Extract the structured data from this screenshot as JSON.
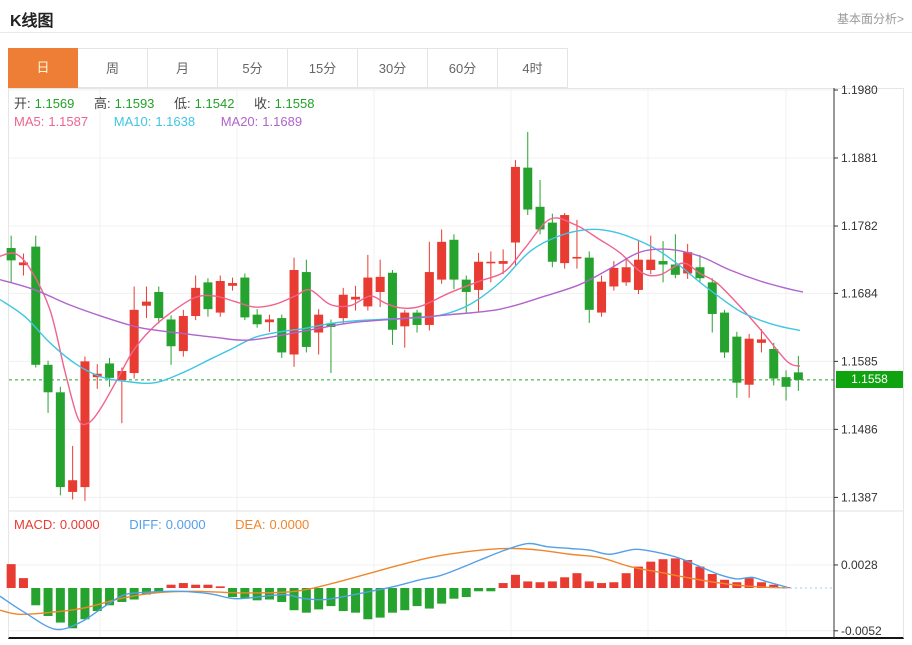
{
  "header": {
    "title": "K线图",
    "link": "基本面分析>"
  },
  "tabs": {
    "items": [
      "日",
      "周",
      "月",
      "5分",
      "15分",
      "30分",
      "60分",
      "4时"
    ],
    "active_index": 0
  },
  "ohlc": {
    "open_label": "开:",
    "open": "1.1569",
    "high_label": "高:",
    "high": "1.1593",
    "low_label": "低:",
    "low": "1.1542",
    "close_label": "收:",
    "close": "1.1558"
  },
  "ma_legend": {
    "ma5_label": "MA5:",
    "ma5": "1.1587",
    "ma10_label": "MA10:",
    "ma10": "1.1638",
    "ma20_label": "MA20:",
    "ma20": "1.1689"
  },
  "macd_legend": {
    "macd_label": "MACD:",
    "macd": "0.0000",
    "diff_label": "DIFF:",
    "diff": "0.0000",
    "dea_label": "DEA:",
    "dea": "0.0000"
  },
  "price_badge": "1.1558",
  "colors": {
    "up": "#e83b32",
    "down": "#26a32f",
    "badge_bg": "#10a310",
    "dotted_price": "#22a326",
    "ma5": "#f0638e",
    "ma10": "#3fc6e3",
    "ma20": "#b064cc",
    "diff": "#53a0e8",
    "dea": "#f0862b",
    "macd_dotted": "#8fd0e8",
    "ohlc_value": "#23a127",
    "label_text": "#444",
    "grid": "#f0f0f0",
    "axis": "#333",
    "tab_active_bg": "#ee7e35",
    "tab_active_text": "#fdf6d8"
  },
  "chart_data": {
    "type": "candlestick+macd",
    "title": "K线图",
    "legend": [
      "MA5",
      "MA10",
      "MA20",
      "MACD",
      "DIFF",
      "DEA"
    ],
    "price_axis_ticks": [
      1.198,
      1.1881,
      1.1782,
      1.1684,
      1.1585,
      1.1486,
      1.1387
    ],
    "price_range": [
      1.1387,
      1.198
    ],
    "current_price": 1.1558,
    "macd_axis_ticks": [
      0.0028,
      -0.0052
    ],
    "x_gridlines": [
      100,
      237,
      374,
      511,
      648,
      786
    ],
    "candles": [
      [
        1.175,
        1.1768,
        1.17,
        1.1732
      ],
      [
        1.1725,
        1.1742,
        1.171,
        1.1729
      ],
      [
        1.1752,
        1.1768,
        1.1576,
        1.158
      ],
      [
        1.158,
        1.1586,
        1.151,
        1.154
      ],
      [
        1.154,
        1.1548,
        1.139,
        1.1402
      ],
      [
        1.1395,
        1.1462,
        1.1384,
        1.1412
      ],
      [
        1.1402,
        1.1592,
        1.1382,
        1.1585
      ],
      [
        1.1562,
        1.1581,
        1.1545,
        1.1567
      ],
      [
        1.1582,
        1.159,
        1.1548,
        1.1561
      ],
      [
        1.1558,
        1.1576,
        1.1495,
        1.1571
      ],
      [
        1.1568,
        1.1694,
        1.156,
        1.166
      ],
      [
        1.1666,
        1.1694,
        1.1648,
        1.1672
      ],
      [
        1.1686,
        1.1694,
        1.164,
        1.1648
      ],
      [
        1.1646,
        1.1652,
        1.158,
        1.1607
      ],
      [
        1.16,
        1.166,
        1.1592,
        1.1651
      ],
      [
        1.1651,
        1.171,
        1.1645,
        1.1692
      ],
      [
        1.17,
        1.1706,
        1.165,
        1.1661
      ],
      [
        1.1656,
        1.171,
        1.165,
        1.1702
      ],
      [
        1.1695,
        1.1707,
        1.1688,
        1.1699
      ],
      [
        1.1707,
        1.1713,
        1.1645,
        1.1649
      ],
      [
        1.1653,
        1.1661,
        1.1634,
        1.1639
      ],
      [
        1.1642,
        1.1653,
        1.1628,
        1.1646
      ],
      [
        1.1648,
        1.1653,
        1.159,
        1.1598
      ],
      [
        1.1595,
        1.1736,
        1.1577,
        1.1718
      ],
      [
        1.1715,
        1.1733,
        1.1598,
        1.1606
      ],
      [
        1.1627,
        1.1661,
        1.1595,
        1.1653
      ],
      [
        1.164,
        1.1646,
        1.1568,
        1.1635
      ],
      [
        1.1648,
        1.1692,
        1.164,
        1.1682
      ],
      [
        1.1675,
        1.1695,
        1.1659,
        1.1679
      ],
      [
        1.1665,
        1.174,
        1.1659,
        1.1707
      ],
      [
        1.1686,
        1.1733,
        1.1664,
        1.1708
      ],
      [
        1.1714,
        1.1718,
        1.1609,
        1.1631
      ],
      [
        1.1636,
        1.166,
        1.1605,
        1.1656
      ],
      [
        1.1656,
        1.166,
        1.1627,
        1.1638
      ],
      [
        1.1638,
        1.1759,
        1.163,
        1.1715
      ],
      [
        1.1704,
        1.1777,
        1.1698,
        1.1759
      ],
      [
        1.1762,
        1.177,
        1.169,
        1.1704
      ],
      [
        1.1704,
        1.171,
        1.1656,
        1.1686
      ],
      [
        1.1689,
        1.1743,
        1.1657,
        1.173
      ],
      [
        1.1728,
        1.1745,
        1.17,
        1.173
      ],
      [
        1.1727,
        1.1748,
        1.1712,
        1.1731
      ],
      [
        1.1758,
        1.1878,
        1.1725,
        1.1868
      ],
      [
        1.1867,
        1.1919,
        1.1798,
        1.1806
      ],
      [
        1.181,
        1.1849,
        1.177,
        1.1777
      ],
      [
        1.1787,
        1.18,
        1.1722,
        1.173
      ],
      [
        1.1728,
        1.1801,
        1.172,
        1.1798
      ],
      [
        1.1735,
        1.1791,
        1.172,
        1.1737
      ],
      [
        1.1736,
        1.1745,
        1.1641,
        1.166
      ],
      [
        1.1656,
        1.171,
        1.165,
        1.1701
      ],
      [
        1.1694,
        1.1731,
        1.1688,
        1.1721
      ],
      [
        1.17,
        1.1736,
        1.1695,
        1.1722
      ],
      [
        1.1689,
        1.1762,
        1.1683,
        1.1733
      ],
      [
        1.1718,
        1.1768,
        1.1712,
        1.1733
      ],
      [
        1.1731,
        1.176,
        1.17,
        1.1726
      ],
      [
        1.1726,
        1.177,
        1.1706,
        1.1711
      ],
      [
        1.1713,
        1.1756,
        1.1705,
        1.1744
      ],
      [
        1.1722,
        1.174,
        1.17,
        1.1706
      ],
      [
        1.17,
        1.1706,
        1.1627,
        1.1654
      ],
      [
        1.1656,
        1.166,
        1.159,
        1.1598
      ],
      [
        1.1621,
        1.1628,
        1.1532,
        1.1554
      ],
      [
        1.1551,
        1.1625,
        1.1532,
        1.1618
      ],
      [
        1.1612,
        1.1632,
        1.1598,
        1.1617
      ],
      [
        1.1603,
        1.1612,
        1.155,
        1.156
      ],
      [
        1.1562,
        1.1572,
        1.1528,
        1.1548
      ],
      [
        1.1569,
        1.1593,
        1.1542,
        1.1558
      ]
    ],
    "ma5_points": [
      [
        0,
        1.1738
      ],
      [
        15,
        1.1742
      ],
      [
        30,
        1.172
      ],
      [
        50,
        1.166
      ],
      [
        65,
        1.157
      ],
      [
        78,
        1.1502
      ],
      [
        88,
        1.1495
      ],
      [
        100,
        1.1515
      ],
      [
        117,
        1.1558
      ],
      [
        133,
        1.16
      ],
      [
        150,
        1.163
      ],
      [
        170,
        1.1655
      ],
      [
        195,
        1.1678
      ],
      [
        215,
        1.168
      ],
      [
        235,
        1.1672
      ],
      [
        255,
        1.1664
      ],
      [
        275,
        1.1668
      ],
      [
        295,
        1.168
      ],
      [
        310,
        1.1689
      ],
      [
        330,
        1.1668
      ],
      [
        350,
        1.1666
      ],
      [
        370,
        1.168
      ],
      [
        385,
        1.167
      ],
      [
        400,
        1.1663
      ],
      [
        420,
        1.1665
      ],
      [
        450,
        1.1685
      ],
      [
        480,
        1.1702
      ],
      [
        505,
        1.1716
      ],
      [
        525,
        1.175
      ],
      [
        550,
        1.1792
      ],
      [
        575,
        1.1784
      ],
      [
        600,
        1.1762
      ],
      [
        620,
        1.1743
      ],
      [
        642,
        1.1714
      ],
      [
        660,
        1.1711
      ],
      [
        683,
        1.1728
      ],
      [
        700,
        1.1713
      ],
      [
        717,
        1.1699
      ],
      [
        740,
        1.1665
      ],
      [
        763,
        1.1627
      ],
      [
        787,
        1.1585
      ],
      [
        800,
        1.1578
      ]
    ],
    "ma10_points": [
      [
        0,
        1.1675
      ],
      [
        25,
        1.165
      ],
      [
        50,
        1.1612
      ],
      [
        75,
        1.1582
      ],
      [
        100,
        1.1563
      ],
      [
        125,
        1.1556
      ],
      [
        155,
        1.1554
      ],
      [
        185,
        1.157
      ],
      [
        210,
        1.1588
      ],
      [
        230,
        1.1602
      ],
      [
        255,
        1.162
      ],
      [
        280,
        1.1628
      ],
      [
        305,
        1.1633
      ],
      [
        330,
        1.164
      ],
      [
        355,
        1.1644
      ],
      [
        380,
        1.1646
      ],
      [
        410,
        1.1648
      ],
      [
        440,
        1.1652
      ],
      [
        470,
        1.1668
      ],
      [
        500,
        1.17
      ],
      [
        530,
        1.1745
      ],
      [
        560,
        1.1768
      ],
      [
        590,
        1.1777
      ],
      [
        615,
        1.1773
      ],
      [
        640,
        1.176
      ],
      [
        660,
        1.1745
      ],
      [
        680,
        1.1724
      ],
      [
        700,
        1.17
      ],
      [
        720,
        1.1678
      ],
      [
        740,
        1.1658
      ],
      [
        760,
        1.1645
      ],
      [
        780,
        1.1636
      ],
      [
        800,
        1.163
      ]
    ],
    "ma20_points": [
      [
        0,
        1.1704
      ],
      [
        35,
        1.1689
      ],
      [
        70,
        1.1667
      ],
      [
        105,
        1.1649
      ],
      [
        140,
        1.1634
      ],
      [
        175,
        1.1627
      ],
      [
        215,
        1.162
      ],
      [
        250,
        1.1616
      ],
      [
        300,
        1.1628
      ],
      [
        350,
        1.1641
      ],
      [
        400,
        1.1647
      ],
      [
        450,
        1.1653
      ],
      [
        500,
        1.1661
      ],
      [
        545,
        1.168
      ],
      [
        580,
        1.1697
      ],
      [
        610,
        1.172
      ],
      [
        640,
        1.1744
      ],
      [
        670,
        1.1748
      ],
      [
        700,
        1.1738
      ],
      [
        730,
        1.1718
      ],
      [
        760,
        1.1702
      ],
      [
        790,
        1.169
      ],
      [
        803,
        1.1686
      ]
    ],
    "macd_hist": [
      0.0029,
      0.0012,
      -0.0021,
      -0.0034,
      -0.0042,
      -0.0049,
      -0.0038,
      -0.0028,
      -0.0021,
      -0.0017,
      -0.0014,
      -0.0008,
      -0.0006,
      0.0004,
      0.0006,
      0.0004,
      0.0004,
      0.0002,
      -0.0011,
      -0.0013,
      -0.0015,
      -0.0014,
      -0.0017,
      -0.0027,
      -0.003,
      -0.0026,
      -0.0022,
      -0.0028,
      -0.003,
      -0.0038,
      -0.0036,
      -0.003,
      -0.0027,
      -0.0022,
      -0.0025,
      -0.0019,
      -0.0013,
      -0.0011,
      -0.0004,
      -0.0004,
      0.0006,
      0.0016,
      0.0008,
      0.0007,
      0.0008,
      0.0013,
      0.0018,
      0.0008,
      0.0006,
      0.0007,
      0.0018,
      0.0026,
      0.0032,
      0.0035,
      0.0036,
      0.0034,
      0.0026,
      0.0017,
      0.001,
      0.0007,
      0.0012,
      0.0007,
      0.0004,
      0.0001,
      0.0
    ],
    "diff_points": [
      [
        0,
        -0.001
      ],
      [
        25,
        -0.003
      ],
      [
        55,
        -0.005
      ],
      [
        80,
        -0.0042
      ],
      [
        105,
        -0.0022
      ],
      [
        125,
        -0.0008
      ],
      [
        150,
        -0.0005
      ],
      [
        180,
        -0.0004
      ],
      [
        210,
        -0.0007
      ],
      [
        235,
        -0.0013
      ],
      [
        265,
        -0.001
      ],
      [
        285,
        -0.0008
      ],
      [
        305,
        -0.0013
      ],
      [
        325,
        -0.0014
      ],
      [
        350,
        -0.0009
      ],
      [
        375,
        -0.0003
      ],
      [
        395,
        0.0002
      ],
      [
        420,
        0.001
      ],
      [
        440,
        0.0015
      ],
      [
        460,
        0.0024
      ],
      [
        480,
        0.0034
      ],
      [
        505,
        0.0046
      ],
      [
        528,
        0.0054
      ],
      [
        548,
        0.005
      ],
      [
        570,
        0.0048
      ],
      [
        590,
        0.0046
      ],
      [
        610,
        0.0041
      ],
      [
        635,
        0.0047
      ],
      [
        658,
        0.0043
      ],
      [
        680,
        0.0036
      ],
      [
        700,
        0.0026
      ],
      [
        720,
        0.0016
      ],
      [
        737,
        0.0011
      ],
      [
        752,
        0.0013
      ],
      [
        766,
        0.0008
      ],
      [
        787,
        0.0001
      ]
    ],
    "dea_points": [
      [
        0,
        -0.0027
      ],
      [
        20,
        -0.0032
      ],
      [
        55,
        -0.0029
      ],
      [
        85,
        -0.0024
      ],
      [
        120,
        -0.0013
      ],
      [
        155,
        -0.0006
      ],
      [
        195,
        -0.0004
      ],
      [
        240,
        -0.0006
      ],
      [
        285,
        -0.0005
      ],
      [
        310,
        -0.0001
      ],
      [
        340,
        0.0008
      ],
      [
        370,
        0.0018
      ],
      [
        400,
        0.0028
      ],
      [
        430,
        0.0037
      ],
      [
        460,
        0.0043
      ],
      [
        490,
        0.0047
      ],
      [
        513,
        0.0048
      ],
      [
        540,
        0.0046
      ],
      [
        570,
        0.0041
      ],
      [
        600,
        0.0037
      ],
      [
        630,
        0.0026
      ],
      [
        660,
        0.0019
      ],
      [
        690,
        0.0012
      ],
      [
        720,
        0.0006
      ],
      [
        750,
        0.0002
      ],
      [
        787,
        0.0
      ]
    ],
    "macd_dotted_level": 0.0
  }
}
